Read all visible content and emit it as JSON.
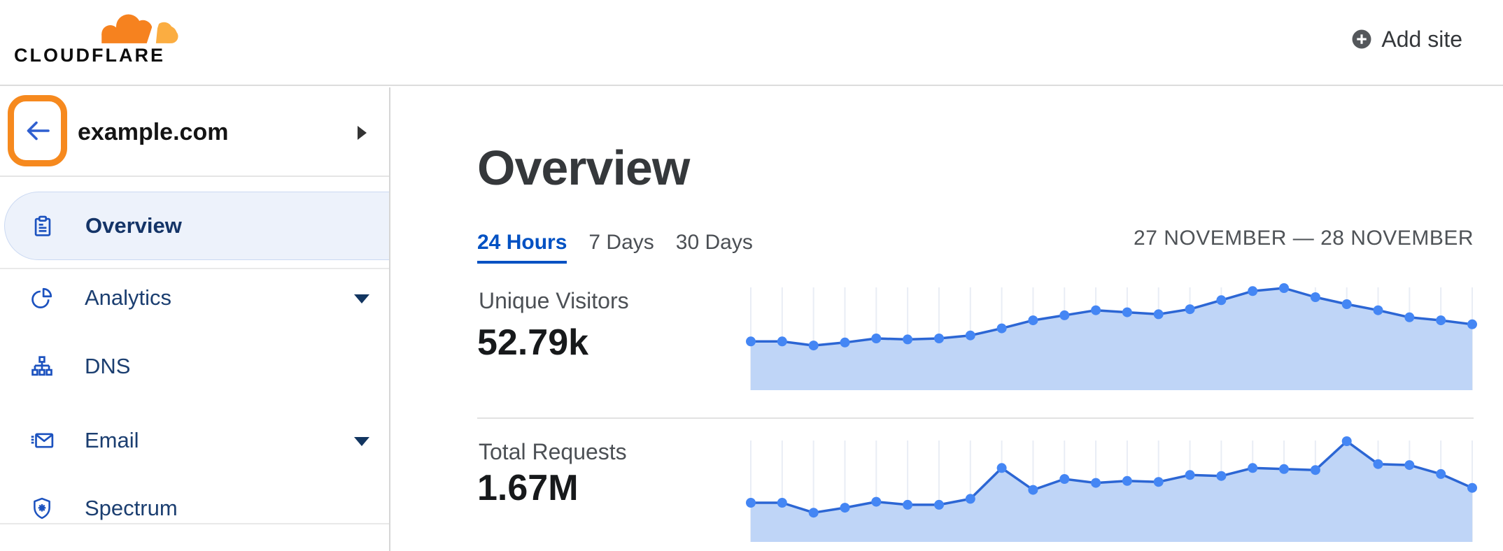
{
  "header": {
    "logo_text": "CLOUDFLARE",
    "add_site_label": "Add site",
    "brand_orange": "#F6821F",
    "brand_orange_light": "#FBAD41"
  },
  "sidebar": {
    "site_name": "example.com",
    "back_highlight_color": "#F6891E",
    "items": [
      {
        "label": "Overview",
        "icon": "clipboard-icon",
        "active": true,
        "has_caret": false
      },
      {
        "label": "Analytics",
        "icon": "pie-chart-icon",
        "active": false,
        "has_caret": true
      },
      {
        "label": "DNS",
        "icon": "dns-tree-icon",
        "active": false,
        "has_caret": false
      },
      {
        "label": "Email",
        "icon": "email-icon",
        "active": false,
        "has_caret": true
      },
      {
        "label": "Spectrum",
        "icon": "shield-icon",
        "active": false,
        "has_caret": false
      }
    ]
  },
  "main": {
    "title": "Overview",
    "tabs": [
      {
        "label": "24 Hours",
        "active": true
      },
      {
        "label": "7 Days",
        "active": false
      },
      {
        "label": "30 Days",
        "active": false
      }
    ],
    "date_range": "27 NOVEMBER — 28 NOVEMBER",
    "metrics": [
      {
        "label": "Unique Visitors",
        "value": "52.79k"
      },
      {
        "label": "Total Requests",
        "value": "1.67M"
      }
    ]
  },
  "chart_data": [
    {
      "type": "area",
      "title": "Unique Visitors",
      "summary_value": "52.79k",
      "x": "24 hourly points, 27 November — 28 November",
      "y_axis_labels": "none (sparkline, relative scale)",
      "grid": "vertical gridlines at each point",
      "legend": "none",
      "relative_values_pct": [
        47,
        47,
        43,
        46,
        50,
        49,
        50,
        53,
        60,
        68,
        73,
        78,
        76,
        74,
        79,
        88,
        97,
        100,
        91,
        84,
        78,
        71,
        68,
        64
      ],
      "colors": {
        "line": "#2c66d4",
        "dot": "#4486f4",
        "fill": "#bfd5f7",
        "gridline": "#e9edf5"
      }
    },
    {
      "type": "area",
      "title": "Total Requests",
      "summary_value": "1.67M",
      "x": "24 hourly points, 27 November — 28 November",
      "y_axis_labels": "none (sparkline, relative scale)",
      "grid": "vertical gridlines at each point",
      "legend": "none",
      "relative_values_pct": [
        38,
        38,
        28,
        33,
        39,
        36,
        36,
        42,
        73,
        51,
        62,
        58,
        60,
        59,
        66,
        65,
        73,
        72,
        71,
        100,
        77,
        76,
        67,
        53
      ],
      "colors": {
        "line": "#2c66d4",
        "dot": "#4486f4",
        "fill": "#bfd5f7",
        "gridline": "#e9edf5"
      }
    }
  ]
}
